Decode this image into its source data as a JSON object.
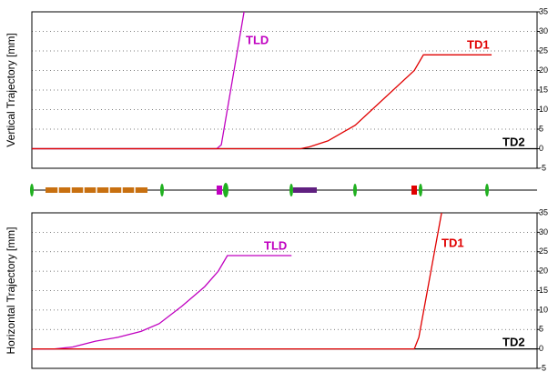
{
  "chart_data": [
    {
      "type": "line",
      "y_label": "Vertical Trajectory [mm]",
      "xlim": [
        0,
        100
      ],
      "ylim": [
        -5,
        35
      ],
      "yticks": [
        -5,
        0,
        5,
        10,
        15,
        20,
        25,
        30,
        35
      ],
      "grid": true,
      "series": [
        {
          "name": "TD2",
          "color": "#000000",
          "x": [
            0,
            100
          ],
          "values": [
            0,
            0
          ]
        },
        {
          "name": "TLD",
          "color": "#c000c0",
          "x": [
            0,
            36.6,
            37.5,
            42
          ],
          "values": [
            0,
            0,
            1,
            35
          ]
        },
        {
          "name": "TD1",
          "color": "#e00000",
          "x": [
            0,
            53.2,
            55,
            58.6,
            64,
            75.7,
            77.5,
            91
          ],
          "values": [
            0,
            0,
            0.5,
            2,
            6,
            20,
            24,
            24
          ]
        }
      ]
    },
    {
      "type": "line",
      "y_label": "Horizontal Trajectory [mm]",
      "xlim": [
        0,
        100
      ],
      "ylim": [
        -5,
        35
      ],
      "yticks": [
        -5,
        0,
        5,
        10,
        15,
        20,
        25,
        30,
        35
      ],
      "grid": true,
      "series": [
        {
          "name": "TD2",
          "color": "#000000",
          "x": [
            0,
            100
          ],
          "values": [
            0,
            0
          ]
        },
        {
          "name": "TLD",
          "color": "#c000c0",
          "x": [
            0,
            4.5,
            8.1,
            12.6,
            17.1,
            21.6,
            25.2,
            29.7,
            34.2,
            36.9,
            38.7,
            51.4
          ],
          "values": [
            0,
            0,
            0.5,
            2,
            3,
            4.5,
            6.5,
            11,
            16,
            20,
            24,
            24
          ]
        },
        {
          "name": "TD1",
          "color": "#e00000",
          "x": [
            0,
            75.7,
            76.6,
            81.1
          ],
          "values": [
            0,
            0,
            3,
            35
          ]
        }
      ]
    }
  ]
}
